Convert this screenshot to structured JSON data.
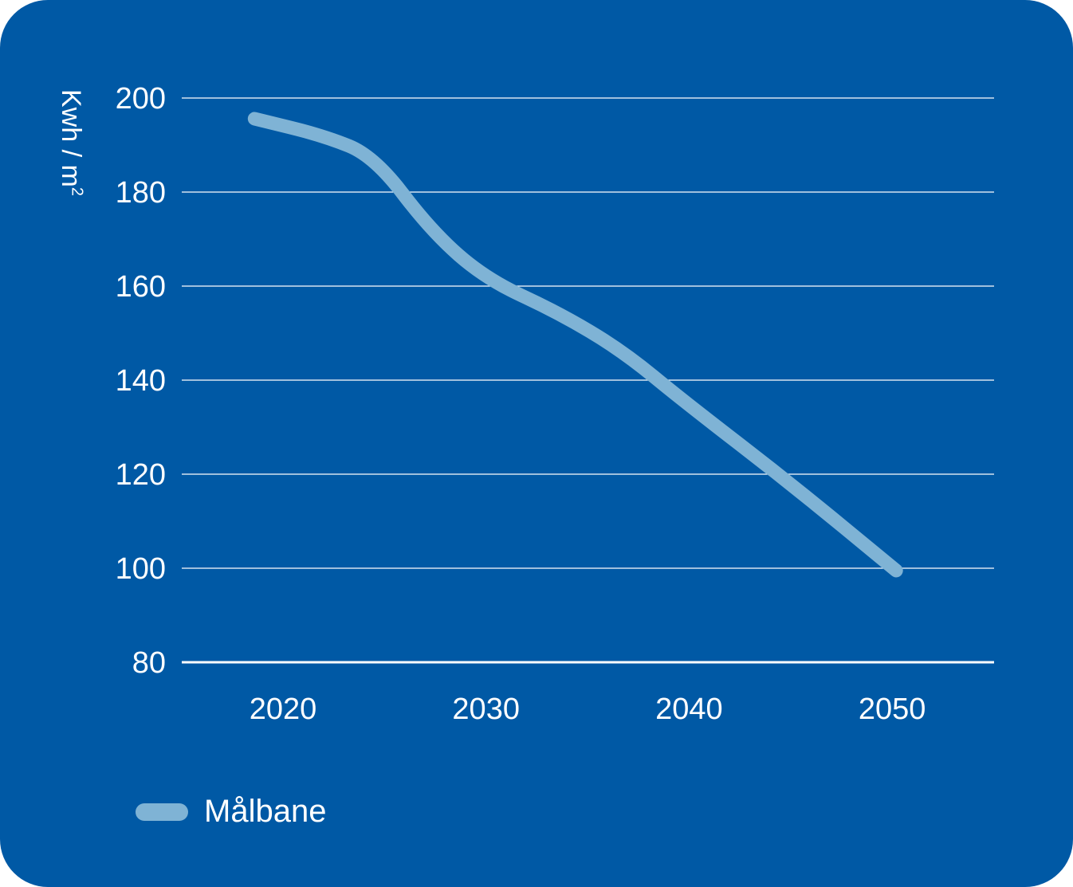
{
  "chart_data": {
    "type": "line",
    "title": "",
    "xlabel": "",
    "ylabel": "Kwh / m",
    "ylabel_superscript": "2",
    "ylim": [
      80,
      200
    ],
    "yticks": [
      200,
      180,
      160,
      140,
      120,
      100,
      80
    ],
    "xticks": [
      2020,
      2030,
      2040,
      2050
    ],
    "xlim": [
      2015,
      2055
    ],
    "grid": true,
    "legend_position": "bottom-left",
    "series": [
      {
        "name": "Målbane",
        "color": "#7fb3d5",
        "x": [
          2018.6,
          2022,
          2024.5,
          2027.3,
          2030,
          2033.5,
          2036.7,
          2039.8,
          2045,
          2050.2
        ],
        "y": [
          195.6,
          192,
          187.6,
          171.7,
          161.5,
          154.5,
          146.3,
          135.3,
          118,
          99.5
        ]
      }
    ]
  },
  "colors": {
    "background": "#0059a5",
    "grid": "#ffffff"
  }
}
